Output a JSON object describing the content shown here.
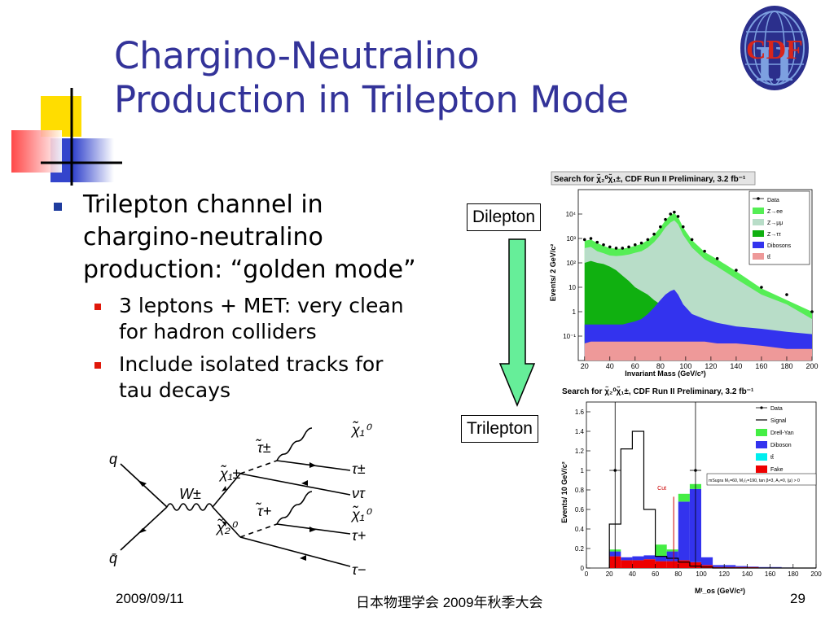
{
  "slide": {
    "title_line1": "Chargino-Neutralino",
    "title_line2": "Production in Trilepton Mode",
    "bullet1": "Trilepton channel in chargino-neutralino production: “golden mode”",
    "bullet1_lines": [
      "Trilepton channel in",
      "chargino-neutralino",
      "production: “golden mode”"
    ],
    "sub_bullets": [
      {
        "lines": [
          "3 leptons + MET: very clean",
          "for hadron colliders"
        ]
      },
      {
        "lines": [
          "Include isolated tracks for",
          "tau decays"
        ]
      }
    ],
    "tag_dilepton": "Dilepton",
    "tag_trilepton": "Trilepton",
    "logo_text": "CDF",
    "logo_numeral": "II"
  },
  "footer": {
    "date": "2009/09/11",
    "event": "日本物理学会 2009年秋季大会",
    "page": "29"
  },
  "diagram": {
    "labels": {
      "q": "q",
      "qbar": "q̄",
      "w": "W±",
      "chi1pm": "χ̃₁±",
      "chi20": "χ̃₂⁰",
      "stau_pm": "τ̃±",
      "stau_p": "τ̃+",
      "chi10_a": "χ̃₁⁰",
      "tau_pm": "τ±",
      "nu_tau": "ντ",
      "chi10_b": "χ̃₁⁰",
      "tau_p": "τ+",
      "tau_m": "τ−"
    }
  },
  "colors": {
    "title": "#333399",
    "bullet": "#1f3c9e",
    "sub_bullet": "#e0180a",
    "arrow_fill": "#66ee99",
    "data": "#000000",
    "z_ee": "#55ee55",
    "z_mumu": "#b8ddc8",
    "z_tautau": "#10b010",
    "diboson": "#3333ee",
    "ttbar": "#ee9999",
    "drell_yan": "#44ee44",
    "ttbar2": "#00eeee",
    "fake": "#ee0000",
    "signal": "#000000"
  },
  "chart_data": [
    {
      "type": "area",
      "title": "Search for χ̃₂⁰χ̃₁±, CDF Run II Preliminary, 3.2 fb⁻¹",
      "xlabel": "Invariant Mass (GeV/c²)",
      "ylabel": "Events/ 2 GeV/c²",
      "log_y": true,
      "xlim": [
        15,
        200
      ],
      "ylim": [
        0.01,
        100000
      ],
      "x_ticks": [
        "20",
        "40",
        "60",
        "80",
        "100",
        "120",
        "140",
        "160",
        "180",
        "200"
      ],
      "y_ticks": [
        "10⁻¹",
        "1",
        "10",
        "10²",
        "10³",
        "10⁴"
      ],
      "y_tick_values": [
        0.1,
        1,
        10,
        100,
        1000,
        10000
      ],
      "legend": [
        "Data",
        "Z→ee",
        "Z→μμ",
        "Z→ττ",
        "Dibosons",
        "tt̄"
      ],
      "legend_position": "top-right",
      "x": [
        20,
        25,
        30,
        35,
        40,
        45,
        50,
        55,
        60,
        65,
        70,
        75,
        80,
        84,
        88,
        91,
        94,
        98,
        105,
        115,
        125,
        140,
        160,
        180,
        200
      ],
      "series": [
        {
          "name": "Data",
          "values": [
            900,
            1000,
            700,
            550,
            450,
            400,
            400,
            450,
            550,
            650,
            900,
            1500,
            3000,
            6000,
            10000,
            12000,
            8000,
            3000,
            900,
            300,
            150,
            50,
            10,
            5,
            1
          ]
        },
        {
          "name": "Z→ee",
          "values": [
            800,
            900,
            650,
            500,
            400,
            380,
            380,
            420,
            500,
            600,
            850,
            1400,
            2800,
            5500,
            9000,
            11000,
            7500,
            2800,
            850,
            280,
            140,
            45,
            9,
            3,
            1
          ]
        },
        {
          "name": "Z→μμ",
          "values": [
            400,
            450,
            300,
            250,
            200,
            190,
            200,
            220,
            260,
            300,
            420,
            700,
            1400,
            2800,
            4500,
            5500,
            3800,
            1400,
            420,
            140,
            70,
            22,
            5,
            2,
            0.5
          ]
        },
        {
          "name": "Z→ττ",
          "values": [
            100,
            120,
            100,
            90,
            70,
            50,
            30,
            18,
            10,
            7,
            5,
            3,
            2,
            2,
            2,
            1,
            0.6,
            0.4,
            0.3,
            0.2,
            0.12,
            0.08,
            0.05,
            0.03,
            0.02
          ]
        },
        {
          "name": "Dibosons",
          "values": [
            0.3,
            0.3,
            0.3,
            0.3,
            0.3,
            0.3,
            0.3,
            0.35,
            0.4,
            0.5,
            0.8,
            1.5,
            3,
            5,
            7,
            8,
            5,
            2,
            0.8,
            0.5,
            0.35,
            0.25,
            0.2,
            0.15,
            0.12
          ]
        },
        {
          "name": "tt̄",
          "values": [
            0.05,
            0.06,
            0.06,
            0.06,
            0.06,
            0.06,
            0.06,
            0.06,
            0.06,
            0.06,
            0.06,
            0.06,
            0.06,
            0.06,
            0.06,
            0.06,
            0.06,
            0.06,
            0.06,
            0.06,
            0.05,
            0.05,
            0.04,
            0.03,
            0.03
          ]
        }
      ]
    },
    {
      "type": "bar",
      "title": "Search for χ̃₂⁰χ̃₁±, CDF Run II Preliminary, 3.2 fb⁻¹",
      "xlabel": "Mᵗ_os (GeV/c²)",
      "ylabel": "Events/ 10 GeV/c²",
      "xlim": [
        0,
        200
      ],
      "ylim": [
        0,
        1.7
      ],
      "x_ticks": [
        "0",
        "20",
        "40",
        "60",
        "80",
        "100",
        "120",
        "140",
        "160",
        "180",
        "200"
      ],
      "y_ticks": [
        "0",
        "0.2",
        "0.4",
        "0.6",
        "0.8",
        "1",
        "1.2",
        "1.4",
        "1.6"
      ],
      "legend": [
        "Data",
        "Signal",
        "Drell-Yan",
        "Diboson",
        "tt̄",
        "Fake"
      ],
      "legend_position": "top-right",
      "annotation": "mSugra M₀=60, M₁/₂=190, tan β=3, A₀=0, (μ) > 0",
      "cut_label": "Cut",
      "cut_x": 76,
      "bin_edges": [
        20,
        30,
        40,
        50,
        60,
        70,
        80,
        90,
        100,
        110,
        120,
        130,
        140,
        150,
        160,
        170,
        180,
        190,
        200
      ],
      "series": [
        {
          "name": "Fake",
          "values": [
            0.12,
            0.08,
            0.08,
            0.09,
            0.07,
            0.07,
            0.08,
            0.06,
            0.03,
            0.01,
            0.01,
            0.01,
            0.01,
            0.005,
            0.005,
            0,
            0,
            0
          ]
        },
        {
          "name": "Diboson",
          "values": [
            0.05,
            0.03,
            0.04,
            0.04,
            0.05,
            0.1,
            0.6,
            0.75,
            0.08,
            0.02,
            0.02,
            0.01,
            0.005,
            0.005,
            0.005,
            0.005,
            0,
            0
          ]
        },
        {
          "name": "tt̄",
          "values": [
            0,
            0,
            0,
            0,
            0,
            0,
            0,
            0,
            0,
            0,
            0,
            0,
            0,
            0,
            0,
            0,
            0,
            0
          ]
        },
        {
          "name": "Drell-Yan",
          "values": [
            0.02,
            0,
            0,
            0,
            0.12,
            0.02,
            0.08,
            0.05,
            0,
            0,
            0,
            0,
            0,
            0,
            0,
            0,
            0,
            0
          ]
        },
        {
          "name": "Signal",
          "values": [
            0.45,
            1.22,
            1.4,
            0.6,
            0.12,
            0.1,
            0.06,
            0.02,
            0.01,
            0,
            0,
            0,
            0,
            0,
            0,
            0,
            0,
            0
          ]
        }
      ],
      "data_points": [
        {
          "x": 25,
          "y": 1,
          "xerr": 5
        },
        {
          "x": 95,
          "y": 1,
          "xerr": 5
        }
      ]
    }
  ]
}
